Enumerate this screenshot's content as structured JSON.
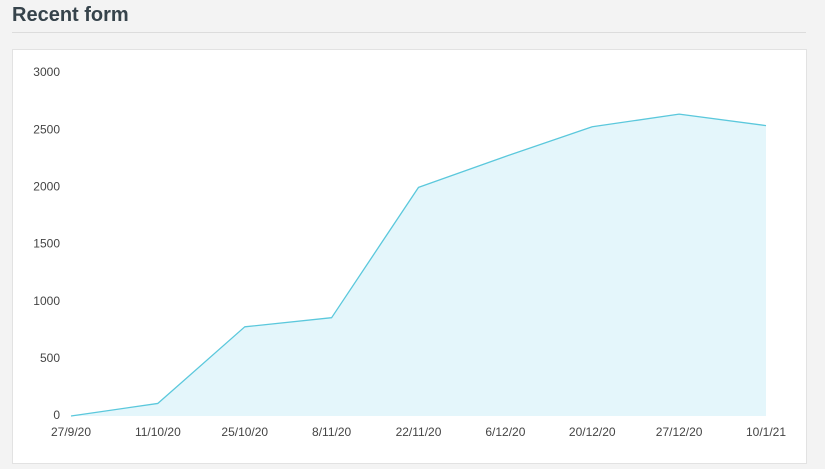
{
  "header": {
    "title": "Recent form"
  },
  "chart_data": {
    "type": "area",
    "categories": [
      "27/9/20",
      "11/10/20",
      "25/10/20",
      "8/11/20",
      "22/11/20",
      "6/12/20",
      "20/12/20",
      "27/12/20",
      "10/1/21"
    ],
    "values": [
      0,
      110,
      780,
      860,
      2000,
      2270,
      2530,
      2640,
      2540
    ],
    "color": "#5bc8dc",
    "fill": "#e4f6fb",
    "ylim": [
      0,
      3000
    ],
    "yticks": [
      0,
      500,
      1000,
      1500,
      2000,
      2500,
      3000
    ],
    "grid": false
  }
}
